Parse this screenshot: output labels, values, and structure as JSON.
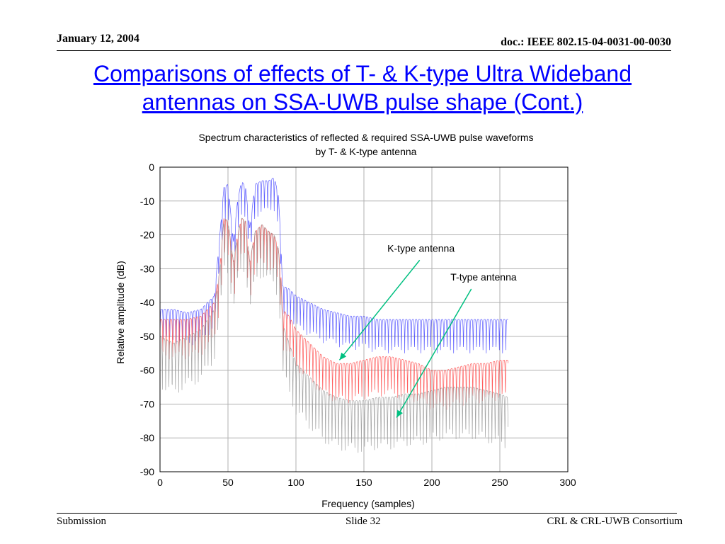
{
  "header": {
    "date": "January 12, 2004",
    "doc": "doc.: IEEE 802.15-04-0031-00-0030"
  },
  "slide": {
    "title_line1": "Comparisons of effects of T- & K-type Ultra Wideband",
    "title_line2": "antennas on SSA-UWB pulse shape (Cont.)"
  },
  "footer": {
    "left": "Submission",
    "center": "Slide 32",
    "right": "CRL & CRL-UWB Consortium"
  },
  "colors": {
    "title": "#0000ff",
    "series_blue": "#4a4aff",
    "series_red": "#ff4a4a",
    "series_gray": "#9a9a9a",
    "arrow": "#00c080"
  },
  "chart_data": {
    "type": "line",
    "title_line1": "Spectrum characteristics of reflected & required SSA-UWB pulse waveforms",
    "title_line2": "by T- & K-type antenna",
    "xlabel": "Frequency (samples)",
    "ylabel": "Relative amplitude (dB)",
    "xlim": [
      0,
      300
    ],
    "ylim": [
      -90,
      0
    ],
    "xticks": [
      0,
      50,
      100,
      150,
      200,
      250,
      300
    ],
    "yticks": [
      0,
      -10,
      -20,
      -30,
      -40,
      -50,
      -60,
      -70,
      -80,
      -90
    ],
    "grid": true,
    "series": [
      {
        "color": "#4a4aff",
        "x": [
          0,
          10,
          20,
          30,
          40,
          44,
          47,
          50,
          54,
          57,
          60,
          63,
          66,
          70,
          75,
          80,
          84,
          87,
          89,
          90,
          95,
          100,
          110,
          120,
          130,
          140,
          150,
          160,
          170,
          180,
          190,
          200,
          210,
          220,
          230,
          240,
          250,
          256
        ],
        "y": [
          -42,
          -42,
          -43,
          -42,
          -38,
          -20,
          -6,
          -5,
          -22,
          -10,
          -4,
          -6,
          -18,
          -5,
          -4,
          -4,
          -3,
          -8,
          -22,
          -35,
          -36,
          -38,
          -40,
          -42,
          -43,
          -44,
          -44,
          -45,
          -45,
          -45,
          -45,
          -45,
          -45,
          -45,
          -45,
          -45,
          -45,
          -45
        ],
        "trough_depth": 10
      },
      {
        "color": "#ff4a4a",
        "x": [
          0,
          10,
          20,
          30,
          40,
          44,
          47,
          50,
          54,
          57,
          60,
          63,
          66,
          70,
          75,
          80,
          84,
          87,
          89,
          90,
          95,
          100,
          110,
          120,
          130,
          140,
          150,
          160,
          170,
          180,
          190,
          200,
          210,
          220,
          230,
          240,
          250,
          256
        ],
        "y": [
          -45,
          -45,
          -45,
          -44,
          -40,
          -30,
          -15,
          -16,
          -28,
          -20,
          -15,
          -16,
          -28,
          -19,
          -17,
          -19,
          -20,
          -24,
          -32,
          -42,
          -44,
          -48,
          -52,
          -56,
          -58,
          -58,
          -57,
          -56,
          -56,
          -57,
          -58,
          -60,
          -60,
          -59,
          -58,
          -58,
          -57,
          -57
        ],
        "trough_depth": 12
      },
      {
        "color": "#9a9a9a",
        "x": [
          0,
          10,
          20,
          30,
          40,
          44,
          47,
          50,
          54,
          57,
          60,
          63,
          66,
          70,
          75,
          80,
          84,
          87,
          89,
          90,
          95,
          100,
          110,
          120,
          130,
          140,
          150,
          160,
          170,
          180,
          190,
          200,
          210,
          220,
          230,
          240,
          250,
          256
        ],
        "y": [
          -50,
          -52,
          -50,
          -48,
          -42,
          -30,
          -15,
          -16,
          -28,
          -20,
          -15,
          -16,
          -28,
          -19,
          -17,
          -19,
          -20,
          -24,
          -34,
          -46,
          -52,
          -58,
          -62,
          -66,
          -68,
          -69,
          -69,
          -68,
          -68,
          -67,
          -67,
          -66,
          -65,
          -65,
          -65,
          -66,
          -67,
          -68
        ],
        "trough_depth": 16
      }
    ],
    "annotations": [
      {
        "text": "K-type antenna",
        "text_x": 192,
        "text_y": -25,
        "arrow_from": [
          191,
          -27.5
        ],
        "arrow_to": [
          132,
          -57
        ]
      },
      {
        "text": "T-type antenna",
        "text_x": 238,
        "text_y": -33.5,
        "arrow_from": [
          229,
          -36
        ],
        "arrow_to": [
          174,
          -74
        ]
      }
    ]
  }
}
